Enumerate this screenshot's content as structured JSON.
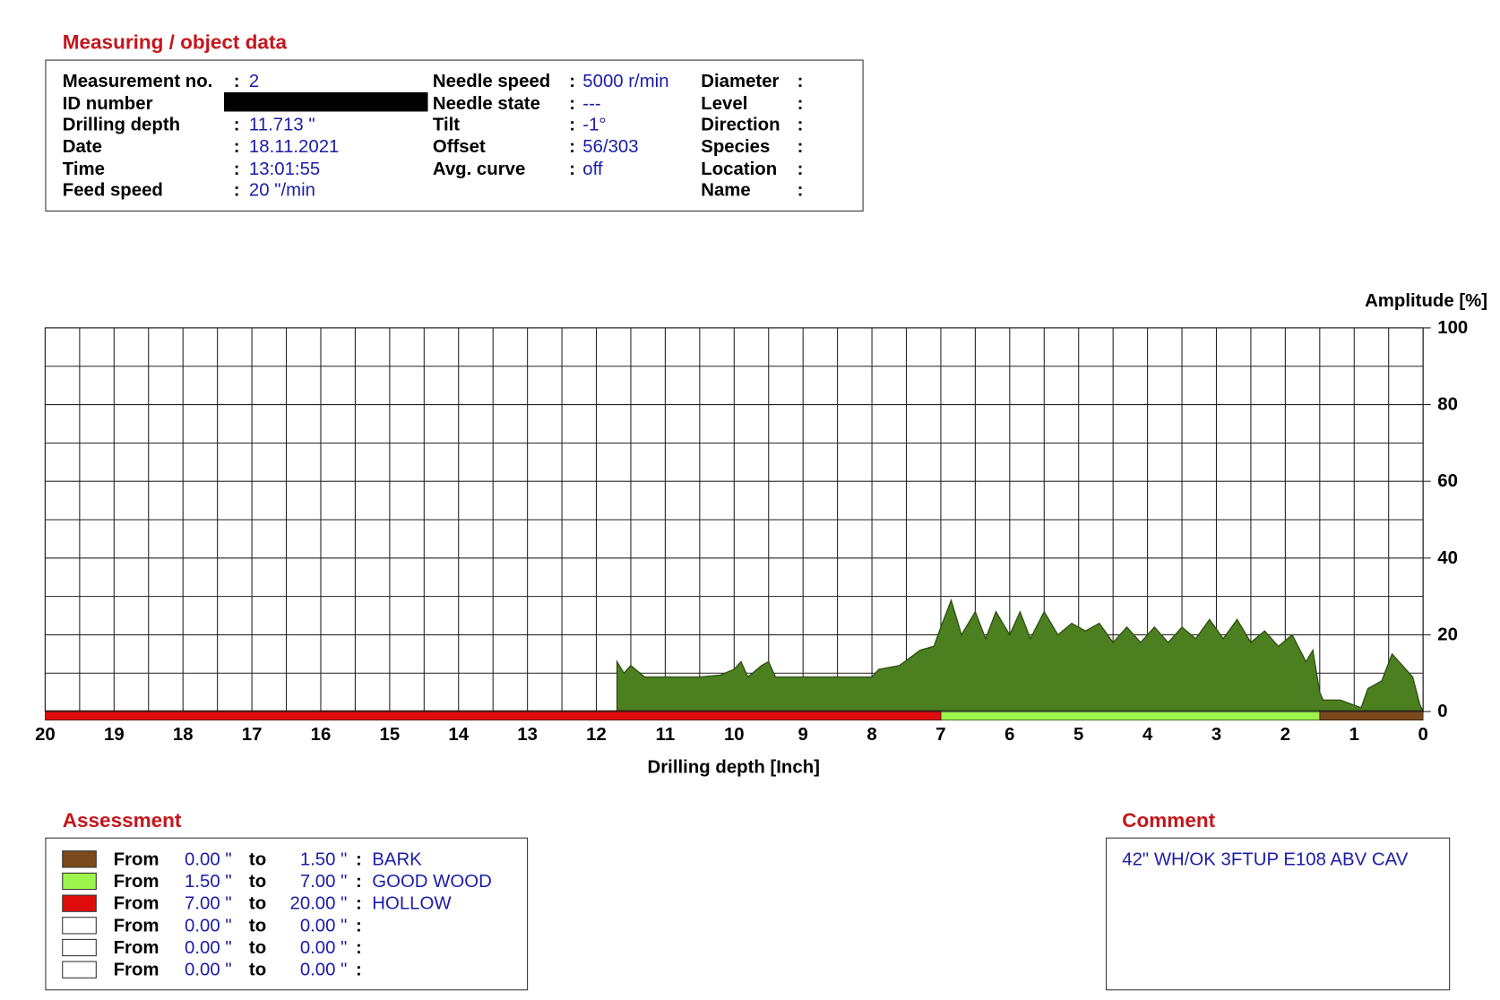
{
  "object_data": {
    "title": "Measuring / object data",
    "separator": ":",
    "columns": [
      [
        {
          "label": "Measurement no.",
          "value": "2"
        },
        {
          "label": "ID number"
        },
        {
          "label": "Drilling depth",
          "value": "11.713 \""
        },
        {
          "label": "Date",
          "value": "18.11.2021"
        },
        {
          "label": "Time",
          "value": "13:01:55"
        },
        {
          "label": "Feed speed",
          "value": "20 \"/min"
        }
      ],
      [
        {
          "label": "Needle speed",
          "value": "5000 r/min"
        },
        {
          "label": "Needle state",
          "value": "---"
        },
        {
          "label": "Tilt",
          "value": "-1°"
        },
        {
          "label": "Offset",
          "value": "56/303"
        },
        {
          "label": "Avg. curve",
          "value": "off"
        }
      ],
      [
        {
          "label": "Diameter"
        },
        {
          "label": "Level"
        },
        {
          "label": "Direction"
        },
        {
          "label": "Species"
        },
        {
          "label": "Location"
        },
        {
          "label": "Name"
        }
      ]
    ]
  },
  "chart_data": {
    "type": "area",
    "x_label": "Drilling depth [Inch]",
    "y_label": "Amplitude [%]",
    "color": "#4b7f1f",
    "xlim": [
      20,
      0
    ],
    "ylim": [
      0,
      100
    ],
    "xticks": [
      0,
      1,
      2,
      3,
      4,
      5,
      6,
      7,
      8,
      9,
      10,
      11,
      12,
      13,
      14,
      15,
      16,
      17,
      18,
      19,
      20
    ],
    "yticks": [
      0,
      20,
      40,
      60,
      80,
      100
    ],
    "x_gridlines": [
      0,
      0.5,
      1,
      1.5,
      2,
      2.5,
      3,
      3.5,
      4,
      4.5,
      5,
      5.5,
      6,
      6.5,
      7,
      7.5,
      8,
      8.5,
      9,
      9.5,
      10,
      10.5,
      11,
      11.5,
      12,
      12.5,
      13,
      13.5,
      14,
      14.5,
      15,
      15.5,
      16,
      16.5,
      17,
      17.5,
      18,
      18.5,
      19,
      19.5,
      20
    ],
    "y_gridlines": [
      0,
      10,
      20,
      30,
      40,
      50,
      60,
      70,
      80,
      90,
      100
    ],
    "x": [
      11.7,
      11.6,
      11.5,
      11.3,
      11.0,
      10.7,
      10.5,
      10.2,
      10.0,
      9.9,
      9.8,
      9.6,
      9.5,
      9.4,
      9.0,
      8.5,
      8.0,
      7.9,
      7.6,
      7.3,
      7.1,
      7.0,
      6.85,
      6.7,
      6.5,
      6.35,
      6.2,
      6.0,
      5.85,
      5.7,
      5.5,
      5.3,
      5.1,
      4.9,
      4.7,
      4.5,
      4.3,
      4.1,
      3.9,
      3.7,
      3.5,
      3.3,
      3.1,
      2.9,
      2.7,
      2.5,
      2.3,
      2.1,
      1.9,
      1.7,
      1.6,
      1.5,
      1.45,
      1.2,
      0.9,
      0.8,
      0.6,
      0.45,
      0.3,
      0.15,
      0.05,
      0
    ],
    "values": [
      13,
      10,
      12,
      9,
      9,
      9,
      9,
      9.5,
      11,
      13,
      9,
      12,
      13,
      9,
      9,
      9,
      9,
      11,
      12,
      16,
      17,
      22,
      29,
      20,
      26,
      19,
      26,
      20,
      26,
      19,
      26,
      20,
      23,
      21,
      23,
      18,
      22,
      18,
      22,
      18,
      22,
      19,
      24,
      19,
      24,
      18,
      21,
      17,
      20,
      13,
      16,
      5,
      3,
      3,
      1,
      6,
      8,
      15,
      12,
      9,
      2,
      0
    ]
  },
  "assessment": {
    "title": "Assessment",
    "from_word": "From",
    "to_word": "to",
    "separator": ":",
    "rows": [
      {
        "from": "0.00 \"",
        "to": "1.50 \"",
        "label": "BARK",
        "color": "#7a4a1c"
      },
      {
        "from": "1.50 \"",
        "to": "7.00 \"",
        "label": "GOOD WOOD",
        "color": "#9cf44c"
      },
      {
        "from": "7.00 \"",
        "to": "20.00 \"",
        "label": "HOLLOW",
        "color": "#e00c0c"
      },
      {
        "from": "0.00 \"",
        "to": "0.00 \""
      },
      {
        "from": "0.00 \"",
        "to": "0.00 \""
      },
      {
        "from": "0.00 \"",
        "to": "0.00 \""
      }
    ]
  },
  "comment": {
    "title": "Comment",
    "text": "42\" WH/OK 3FTUP E108 ABV CAV"
  }
}
